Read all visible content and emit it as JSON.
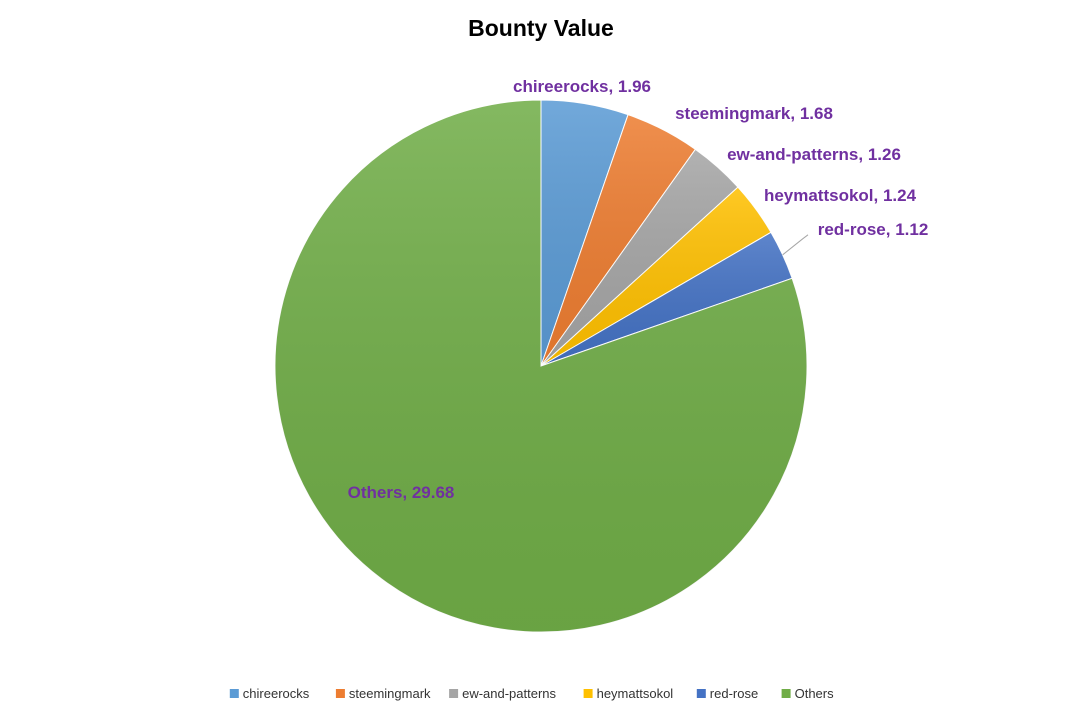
{
  "chart_data": {
    "type": "pie",
    "title": "Bounty Value",
    "categories": [
      "chireerocks",
      "steemingmark",
      "ew-and-patterns",
      "heymattsokol",
      "red-rose",
      "Others"
    ],
    "values": [
      1.96,
      1.68,
      1.26,
      1.24,
      1.12,
      29.68
    ],
    "data_labels": [
      "chireerocks, 1.96",
      "steemingmark, 1.68",
      "ew-and-patterns, 1.26",
      "heymattsokol, 1.24",
      "red-rose, 1.12",
      "Others, 29.68"
    ],
    "colors": [
      "#5b9bd5",
      "#ed7d31",
      "#a5a5a5",
      "#ffc000",
      "#4472c4",
      "#70ad47"
    ],
    "label_color": "#7030a0",
    "legend_position": "bottom",
    "start_angle": "top, clockwise"
  }
}
